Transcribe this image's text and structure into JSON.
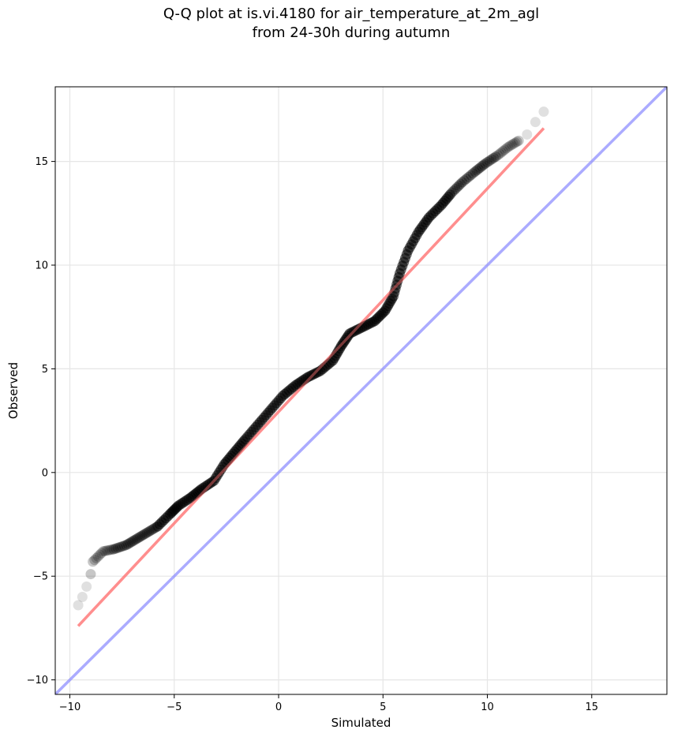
{
  "chart_data": {
    "type": "scatter",
    "title_line1": "Q-Q plot at is.vi.4180 for air_temperature_at_2m_agl",
    "title_line2": "from 24-30h during autumn",
    "xlabel": "Simulated",
    "ylabel": "Observed",
    "xlim": [
      -10.7,
      18.6
    ],
    "ylim": [
      -10.7,
      18.6
    ],
    "xticks": [
      -10,
      -5,
      0,
      5,
      10,
      15
    ],
    "yticks": [
      -10,
      -5,
      0,
      5,
      10,
      15
    ],
    "xtick_labels": [
      "−10",
      "−5",
      "0",
      "5",
      "10",
      "15"
    ],
    "ytick_labels": [
      "−10",
      "−5",
      "0",
      "5",
      "10",
      "15"
    ],
    "grid": true,
    "series": [
      {
        "kind": "quantile-points",
        "color": "#000000",
        "x": [
          -9.6,
          -9.4,
          -9.2,
          -9.0,
          -8.9,
          -8.4,
          -7.9,
          -7.3,
          -6.8,
          -6.3,
          -5.8,
          -5.2,
          -4.8,
          -4.2,
          -3.7,
          -3.1,
          -2.6,
          -2.1,
          -1.6,
          -1.0,
          -0.4,
          0.2,
          0.8,
          1.4,
          2.0,
          2.6,
          3.0,
          3.4,
          4.0,
          4.6,
          5.1,
          5.5,
          5.8,
          6.2,
          6.7,
          7.2,
          7.8,
          8.3,
          8.8,
          9.4,
          9.9,
          10.5,
          11.0,
          11.5,
          11.9,
          12.3,
          12.7
        ],
        "y": [
          -6.4,
          -6.0,
          -5.5,
          -4.9,
          -4.3,
          -3.8,
          -3.7,
          -3.5,
          -3.2,
          -2.9,
          -2.6,
          -2.0,
          -1.6,
          -1.2,
          -0.8,
          -0.4,
          0.4,
          1.0,
          1.6,
          2.3,
          3.0,
          3.7,
          4.2,
          4.6,
          4.9,
          5.4,
          6.1,
          6.7,
          7.0,
          7.3,
          7.8,
          8.5,
          9.6,
          10.7,
          11.6,
          12.3,
          12.9,
          13.5,
          14.0,
          14.5,
          14.9,
          15.3,
          15.7,
          16.0,
          16.3,
          16.9,
          17.4
        ]
      },
      {
        "kind": "fit-line",
        "color": "#ff7777",
        "x": [
          -9.6,
          12.7
        ],
        "y": [
          -7.4,
          16.6
        ]
      },
      {
        "kind": "identity-line",
        "color": "#8888ff",
        "x": [
          -10.7,
          18.6
        ],
        "y": [
          -10.7,
          18.6
        ]
      }
    ]
  }
}
